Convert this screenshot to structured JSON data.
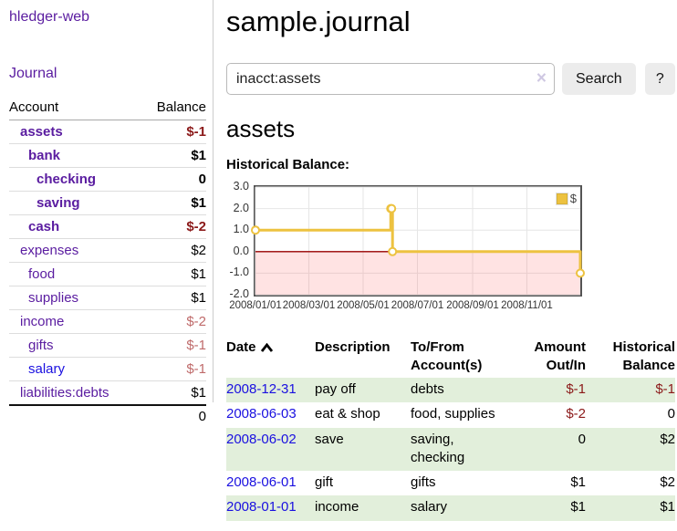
{
  "sidebar": {
    "brand": "hledger-web",
    "journal_link": "Journal",
    "accounts": {
      "headers": {
        "account": "Account",
        "balance": "Balance"
      },
      "rows": [
        {
          "account": "assets",
          "balance": "$-1"
        },
        {
          "account": "bank",
          "balance": "$1"
        },
        {
          "account": "checking",
          "balance": "0"
        },
        {
          "account": "saving",
          "balance": "$1"
        },
        {
          "account": "cash",
          "balance": "$-2"
        },
        {
          "account": "expenses",
          "balance": "$2"
        },
        {
          "account": "food",
          "balance": "$1"
        },
        {
          "account": "supplies",
          "balance": "$1"
        },
        {
          "account": "income",
          "balance": "$-2"
        },
        {
          "account": "gifts",
          "balance": "$-1"
        },
        {
          "account": "salary",
          "balance": "$-1"
        },
        {
          "account": "liabilities:debts",
          "balance": "$1"
        }
      ],
      "total": "0"
    }
  },
  "main": {
    "title": "sample.journal",
    "search": {
      "value": "inacct:assets",
      "clear_icon": "×",
      "search_button": "Search",
      "help_button": "?"
    },
    "account_heading": "assets"
  },
  "chart_data": {
    "type": "line",
    "title": "Historical Balance:",
    "step": true,
    "series": [
      {
        "name": "$",
        "color": "#edc240",
        "points": [
          {
            "date": "2008-01-01",
            "day": 0,
            "value": 1
          },
          {
            "date": "2008-06-01",
            "day": 152,
            "value": 2
          },
          {
            "date": "2008-06-02",
            "day": 153,
            "value": 2
          },
          {
            "date": "2008-06-03",
            "day": 154,
            "value": 0
          },
          {
            "date": "2008-12-31",
            "day": 365,
            "value": -1
          }
        ]
      }
    ],
    "xlim_days": [
      0,
      365
    ],
    "ylim": [
      -2,
      3
    ],
    "x_ticks": [
      {
        "day": 0,
        "label": "2008/01/01"
      },
      {
        "day": 60,
        "label": "2008/03/01"
      },
      {
        "day": 121,
        "label": "2008/05/01"
      },
      {
        "day": 182,
        "label": "2008/07/01"
      },
      {
        "day": 244,
        "label": "2008/09/01"
      },
      {
        "day": 305,
        "label": "2008/11/01"
      }
    ],
    "y_ticks": [
      {
        "v": 3,
        "label": "3.0"
      },
      {
        "v": 2,
        "label": "2.0"
      },
      {
        "v": 1,
        "label": "1.0"
      },
      {
        "v": 0,
        "label": "0.0"
      },
      {
        "v": -1,
        "label": "-1.0"
      },
      {
        "v": -2,
        "label": "-2.0"
      }
    ],
    "grid": true,
    "zero_line_color": "#990000",
    "negative_region_color": "rgba(255,80,80,0.16)",
    "legend_position": "top-right"
  },
  "register": {
    "headers": {
      "date": "Date",
      "description": "Description",
      "accounts": "To/From Account(s)",
      "amount": "Amount Out/In",
      "balance": "Historical Balance"
    },
    "sort": {
      "column": "Date",
      "direction": "asc"
    },
    "rows": [
      {
        "date": "2008-12-31",
        "description": "pay off",
        "accounts": "debts",
        "amount": "$-1",
        "balance": "$-1"
      },
      {
        "date": "2008-06-03",
        "description": "eat & shop",
        "accounts": "food, supplies",
        "amount": "$-2",
        "balance": "0"
      },
      {
        "date": "2008-06-02",
        "description": "save",
        "accounts": "saving, checking",
        "amount": "0",
        "balance": "$2"
      },
      {
        "date": "2008-06-01",
        "description": "gift",
        "accounts": "gifts",
        "amount": "$1",
        "balance": "$2"
      },
      {
        "date": "2008-01-01",
        "description": "income",
        "accounts": "salary",
        "amount": "$1",
        "balance": "$1"
      }
    ]
  }
}
